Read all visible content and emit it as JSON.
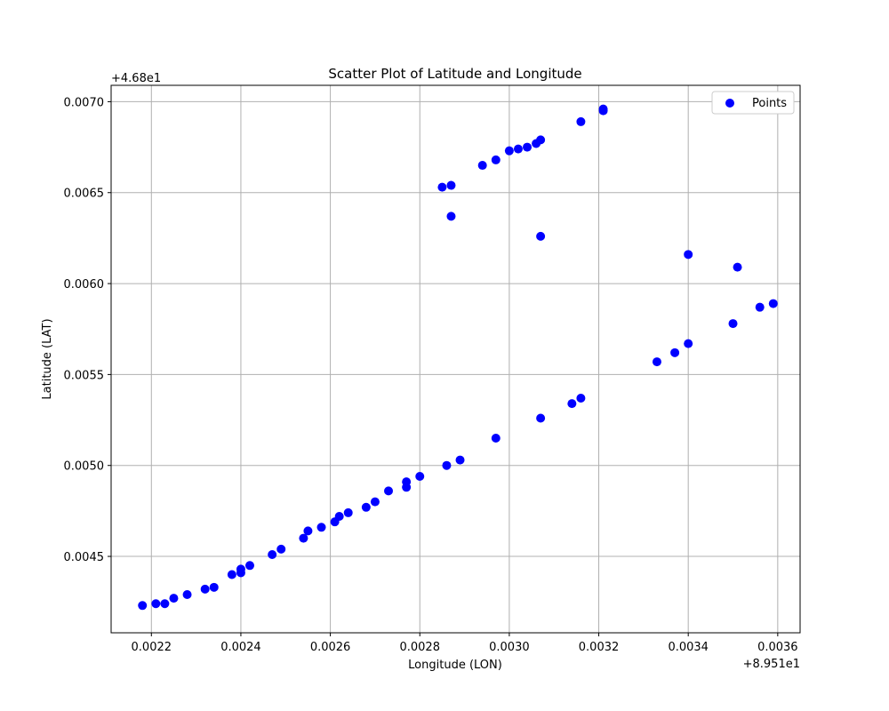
{
  "chart_data": {
    "type": "scatter",
    "title": "Scatter Plot of Latitude and Longitude",
    "xlabel": "Longitude (LON)",
    "ylabel": "Latitude (LAT)",
    "x_offset_label": "+8.951e1",
    "y_offset_label": "+4.68e1",
    "xlim": [
      0.00211,
      0.00365
    ],
    "ylim": [
      0.00408,
      0.00709
    ],
    "xticks": [
      0.0022,
      0.0024,
      0.0026,
      0.0028,
      0.003,
      0.0032,
      0.0034,
      0.0036
    ],
    "xtick_labels": [
      "0.0022",
      "0.0024",
      "0.0026",
      "0.0028",
      "0.0030",
      "0.0032",
      "0.0034",
      "0.0036"
    ],
    "yticks": [
      0.0045,
      0.005,
      0.0055,
      0.006,
      0.0065,
      0.007
    ],
    "ytick_labels": [
      "0.0045",
      "0.0050",
      "0.0055",
      "0.0060",
      "0.0065",
      "0.0070"
    ],
    "grid": true,
    "legend_position": "top-right",
    "color": "#0000ff",
    "series": [
      {
        "name": "Points",
        "x": [
          0.00218,
          0.00221,
          0.00223,
          0.00225,
          0.00228,
          0.00232,
          0.00234,
          0.00238,
          0.0024,
          0.0024,
          0.00242,
          0.00247,
          0.00249,
          0.00254,
          0.00255,
          0.00258,
          0.00261,
          0.00262,
          0.00264,
          0.00268,
          0.0027,
          0.00273,
          0.00277,
          0.00277,
          0.0028,
          0.00286,
          0.00289,
          0.00297,
          0.00307,
          0.00314,
          0.00316,
          0.00333,
          0.00337,
          0.0034,
          0.0035,
          0.00356,
          0.00359,
          0.0034,
          0.00351,
          0.00307,
          0.00287,
          0.00285,
          0.00287,
          0.00294,
          0.00297,
          0.003,
          0.00302,
          0.00304,
          0.00306,
          0.00307,
          0.00316,
          0.00321,
          0.00321
        ],
        "y": [
          0.00423,
          0.00424,
          0.00424,
          0.00427,
          0.00429,
          0.00432,
          0.00433,
          0.0044,
          0.00441,
          0.00443,
          0.00445,
          0.00451,
          0.00454,
          0.0046,
          0.00464,
          0.00466,
          0.00469,
          0.00472,
          0.00474,
          0.00477,
          0.0048,
          0.00486,
          0.00488,
          0.00491,
          0.00494,
          0.005,
          0.00503,
          0.00515,
          0.00526,
          0.00534,
          0.00537,
          0.00557,
          0.00562,
          0.00567,
          0.00578,
          0.00587,
          0.00589,
          0.00616,
          0.00609,
          0.00626,
          0.00637,
          0.00653,
          0.00654,
          0.00665,
          0.00668,
          0.00673,
          0.00674,
          0.00675,
          0.00677,
          0.00679,
          0.00689,
          0.00695,
          0.00696
        ]
      }
    ]
  }
}
